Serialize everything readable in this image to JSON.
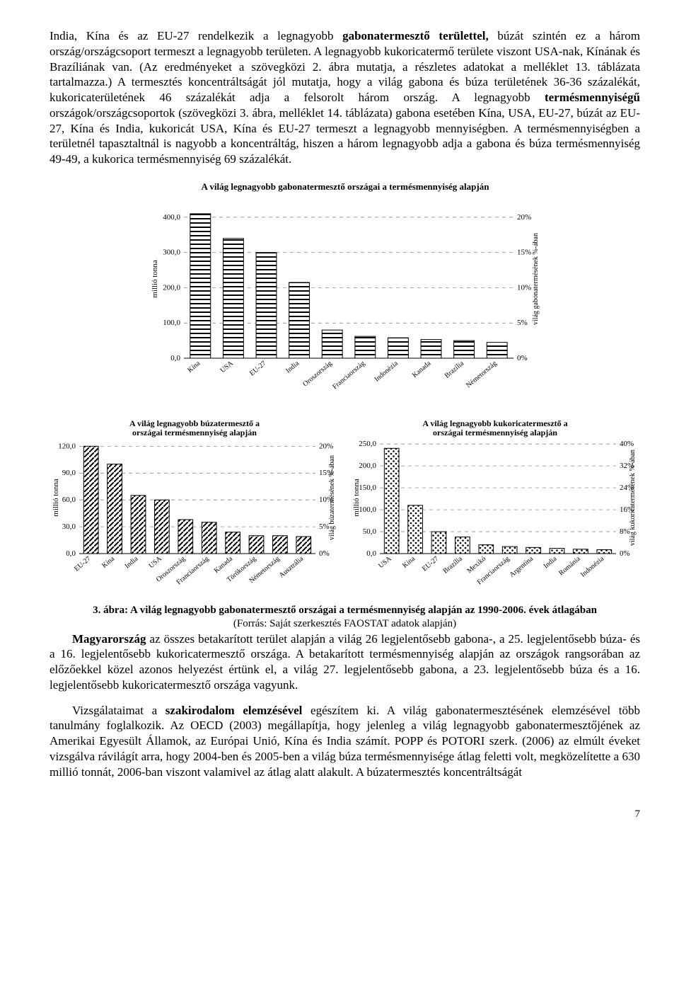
{
  "para1_html": "India, Kína és az EU-27 rendelkezik a legnagyobb <b>gabonatermesztő területtel,</b> búzát szintén ez a három ország/országcsoport termeszt a legnagyobb területen. A legnagyobb kukoricatermő területe viszont USA-nak, Kínának és Brazíliának van. (Az eredményeket a szövegközi 2. ábra mutatja, a részletes adatokat a melléklet 13. táblázata tartalmazza.) A termesztés koncentráltságát jól mutatja, hogy a világ gabona és búza területének 36-36 százalékát, kukoricaterületének 46 százalékát adja a felsorolt három ország. A legnagyobb <b>termésmennyiségű</b> országok/országcsoportok (szövegközi 3. ábra, melléklet 14. táblázata) gabona esetében Kína, USA, EU-27, búzát az EU-27, Kína és India, kukoricát USA, Kína és EU-27 termeszt a legnagyobb mennyiségben. A termésmennyiségben a területnél tapasztaltnál is nagyobb a koncentráltág, hiszen a három legnagyobb adja a gabona és búza termésmennyiség 49-49, a kukorica termésmennyiség 69 százalékát.",
  "chart1": {
    "title": "A világ legnagyobb gabonatermesztő országai a termésmennyiség alapján",
    "ylabel": "millió tonna",
    "ylabel2": "világ gabonatermésének %-ában",
    "yticks": [
      "0,0",
      "100,0",
      "200,0",
      "300,0",
      "400,0"
    ],
    "yvals": [
      0,
      100,
      200,
      300,
      400
    ],
    "y2ticks": [
      "0%",
      "5%",
      "10%",
      "15%",
      "20%"
    ],
    "categories": [
      "Kína",
      "USA",
      "EU-27",
      "India",
      "Oroszország",
      "Franciaország",
      "Indonézia",
      "Kanada",
      "Brazília",
      "Németország"
    ],
    "values": [
      410,
      340,
      300,
      215,
      80,
      62,
      58,
      53,
      50,
      45
    ],
    "pattern": "hstripe",
    "ymax": 450
  },
  "chart2": {
    "title": "A világ legnagyobb búzatermesztő országai a termésmennyiség alapján",
    "ylabel": "millió tonna",
    "ylabel2": "világ búzatermésének %-ában",
    "yticks": [
      "0,0",
      "30,0",
      "60,0",
      "90,0",
      "120,0"
    ],
    "yvals": [
      0,
      30,
      60,
      90,
      120
    ],
    "y2ticks": [
      "0%",
      "5%",
      "10%",
      "15%",
      "20%"
    ],
    "categories": [
      "EU-27",
      "Kína",
      "India",
      "USA",
      "Oroszország",
      "Franciaország",
      "Kanada",
      "Törökország",
      "Németország",
      "Ausztrália"
    ],
    "values": [
      120,
      100,
      65,
      60,
      38,
      35,
      24,
      20,
      20,
      19
    ],
    "pattern": "diag",
    "ymax": 125
  },
  "chart3": {
    "title": "A világ legnagyobb kukoricatermesztő országai a termésmennyiség alapján",
    "ylabel": "millió tonna",
    "ylabel2": "világ kukoricatermésének %-ában",
    "yticks": [
      "0,0",
      "50,0",
      "100,0",
      "150,0",
      "200,0",
      "250,0"
    ],
    "yvals": [
      0,
      50,
      100,
      150,
      200,
      250
    ],
    "y2ticks": [
      "0%",
      "8%",
      "16%",
      "24%",
      "32%",
      "40%"
    ],
    "categories": [
      "USA",
      "Kína",
      "EU-27",
      "Brazília",
      "Mexikó",
      "Franciaország",
      "Argentína",
      "India",
      "Románia",
      "Indonézia"
    ],
    "values": [
      240,
      110,
      50,
      38,
      20,
      16,
      14,
      12,
      10,
      9
    ],
    "pattern": "dots",
    "ymax": 255
  },
  "caption_main": "3. ábra: A világ legnagyobb gabonatermesztő országai a termésmennyiség alapján az 1990-2006. évek átlagában",
  "caption_sub": "(Forrás: Saját szerkesztés FAOSTAT adatok alapján)",
  "para2_html": "<b>Magyarország</b> az összes betakarított terület alapján a világ 26 legjelentősebb gabona-, a 25. legjelentősebb búza- és a 16. legjelentősebb kukoricatermesztő országa. A betakarított termésmennyiség alapján az országok rangsorában az előzőekkel közel azonos helyezést értünk el, a világ 27. legjelentősebb gabona, a 23. legjelentősebb búza és a 16. legjelentősebb kukoricatermesztő országa vagyunk.",
  "para3_html": "Vizsgálataimat a <b>szakirodalom elemzésével</b> egészítem ki. A világ gabonatermesztésének elemzésével több tanulmány foglalkozik. Az OECD (2003) megállapítja, hogy jelenleg a világ legnagyobb gabonatermesztőjének az Amerikai Egyesült Államok, az Európai Unió, Kína és India számít. POPP és POTORI szerk. (2006) az elmúlt éveket vizsgálva rávilágít arra, hogy 2004-ben és 2005-ben a világ búza termésmennyisége átlag feletti volt, megközelítette a 630 millió tonnát, 2006-ban viszont valamivel az átlag alatt alakult. A búzatermesztés koncentráltságát",
  "page": "7",
  "colors": {
    "text": "#000000",
    "grid": "#888888",
    "axis": "#000000",
    "bg": "#ffffff"
  }
}
